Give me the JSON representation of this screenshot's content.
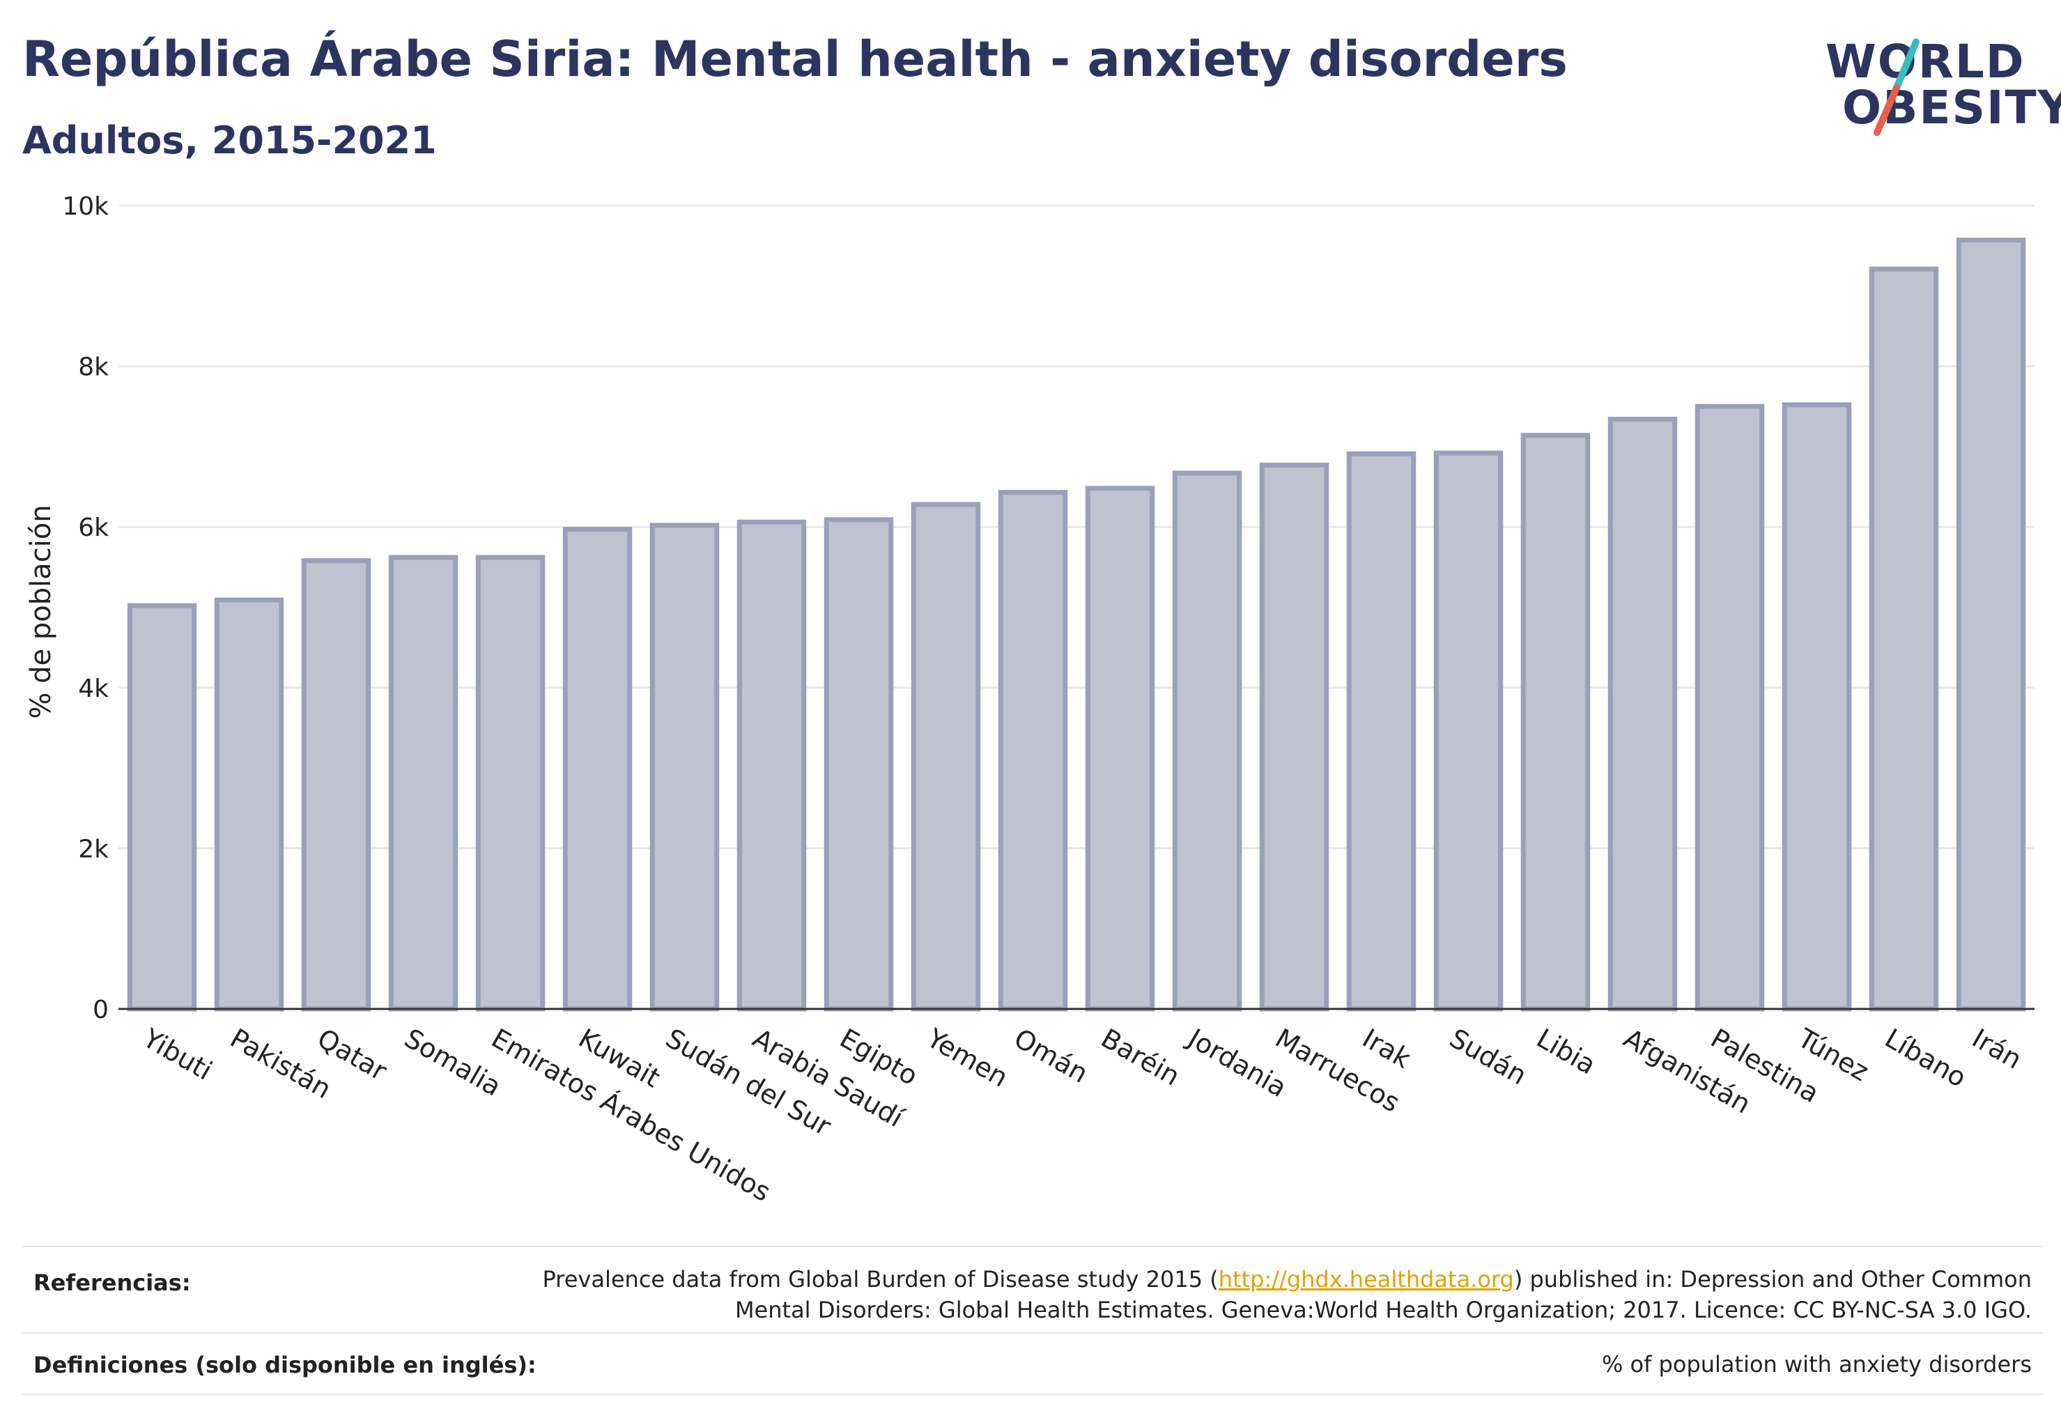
{
  "header": {
    "title": "República Árabe Siria: Mental health - anxiety disorders",
    "subtitle": "Adultos, 2015-2021"
  },
  "logo": {
    "line1": "WORLD",
    "line2": "OBESITY",
    "slash_colors": [
      "#37bcc0",
      "#e8604c"
    ]
  },
  "chart_data": {
    "type": "bar",
    "ylabel": "% de población",
    "ylim": [
      0,
      10000
    ],
    "yticks": [
      0,
      2000,
      4000,
      6000,
      8000,
      10000
    ],
    "ytick_labels": [
      "0",
      "2k",
      "4k",
      "6k",
      "8k",
      "10k"
    ],
    "grid": true,
    "bar_fill": "#bfc2d0",
    "bar_stroke": "#9aa0b8",
    "categories": [
      "Yibuti",
      "Pakistán",
      "Qatar",
      "Somalia",
      "Emiratos Árabes Unidos",
      "Kuwait",
      "Sudán del Sur",
      "Arabia Saudí",
      "Egipto",
      "Yemen",
      "Omán",
      "Baréin",
      "Jordania",
      "Marruecos",
      "Irak",
      "Sudán",
      "Libia",
      "Afganistán",
      "Palestina",
      "Túnez",
      "Líbano",
      "Irán"
    ],
    "values": [
      5020,
      5090,
      5580,
      5620,
      5620,
      5970,
      6020,
      6060,
      6090,
      6280,
      6430,
      6480,
      6670,
      6770,
      6910,
      6920,
      7140,
      7340,
      7500,
      7520,
      9210,
      9570
    ]
  },
  "footer": {
    "references_label": "Referencias:",
    "references_pre": "Prevalence data from Global Burden of Disease study 2015 (",
    "references_link": "http://ghdx.healthdata.org",
    "references_post": ") published in: Depression and Other Common",
    "references_line2": "Mental Disorders: Global Health Estimates. Geneva:World Health Organization; 2017. Licence: CC BY-NC-SA 3.0 IGO.",
    "definitions_label": "Definiciones (solo disponible en inglés):",
    "definitions_text": "% of population with anxiety disorders"
  }
}
